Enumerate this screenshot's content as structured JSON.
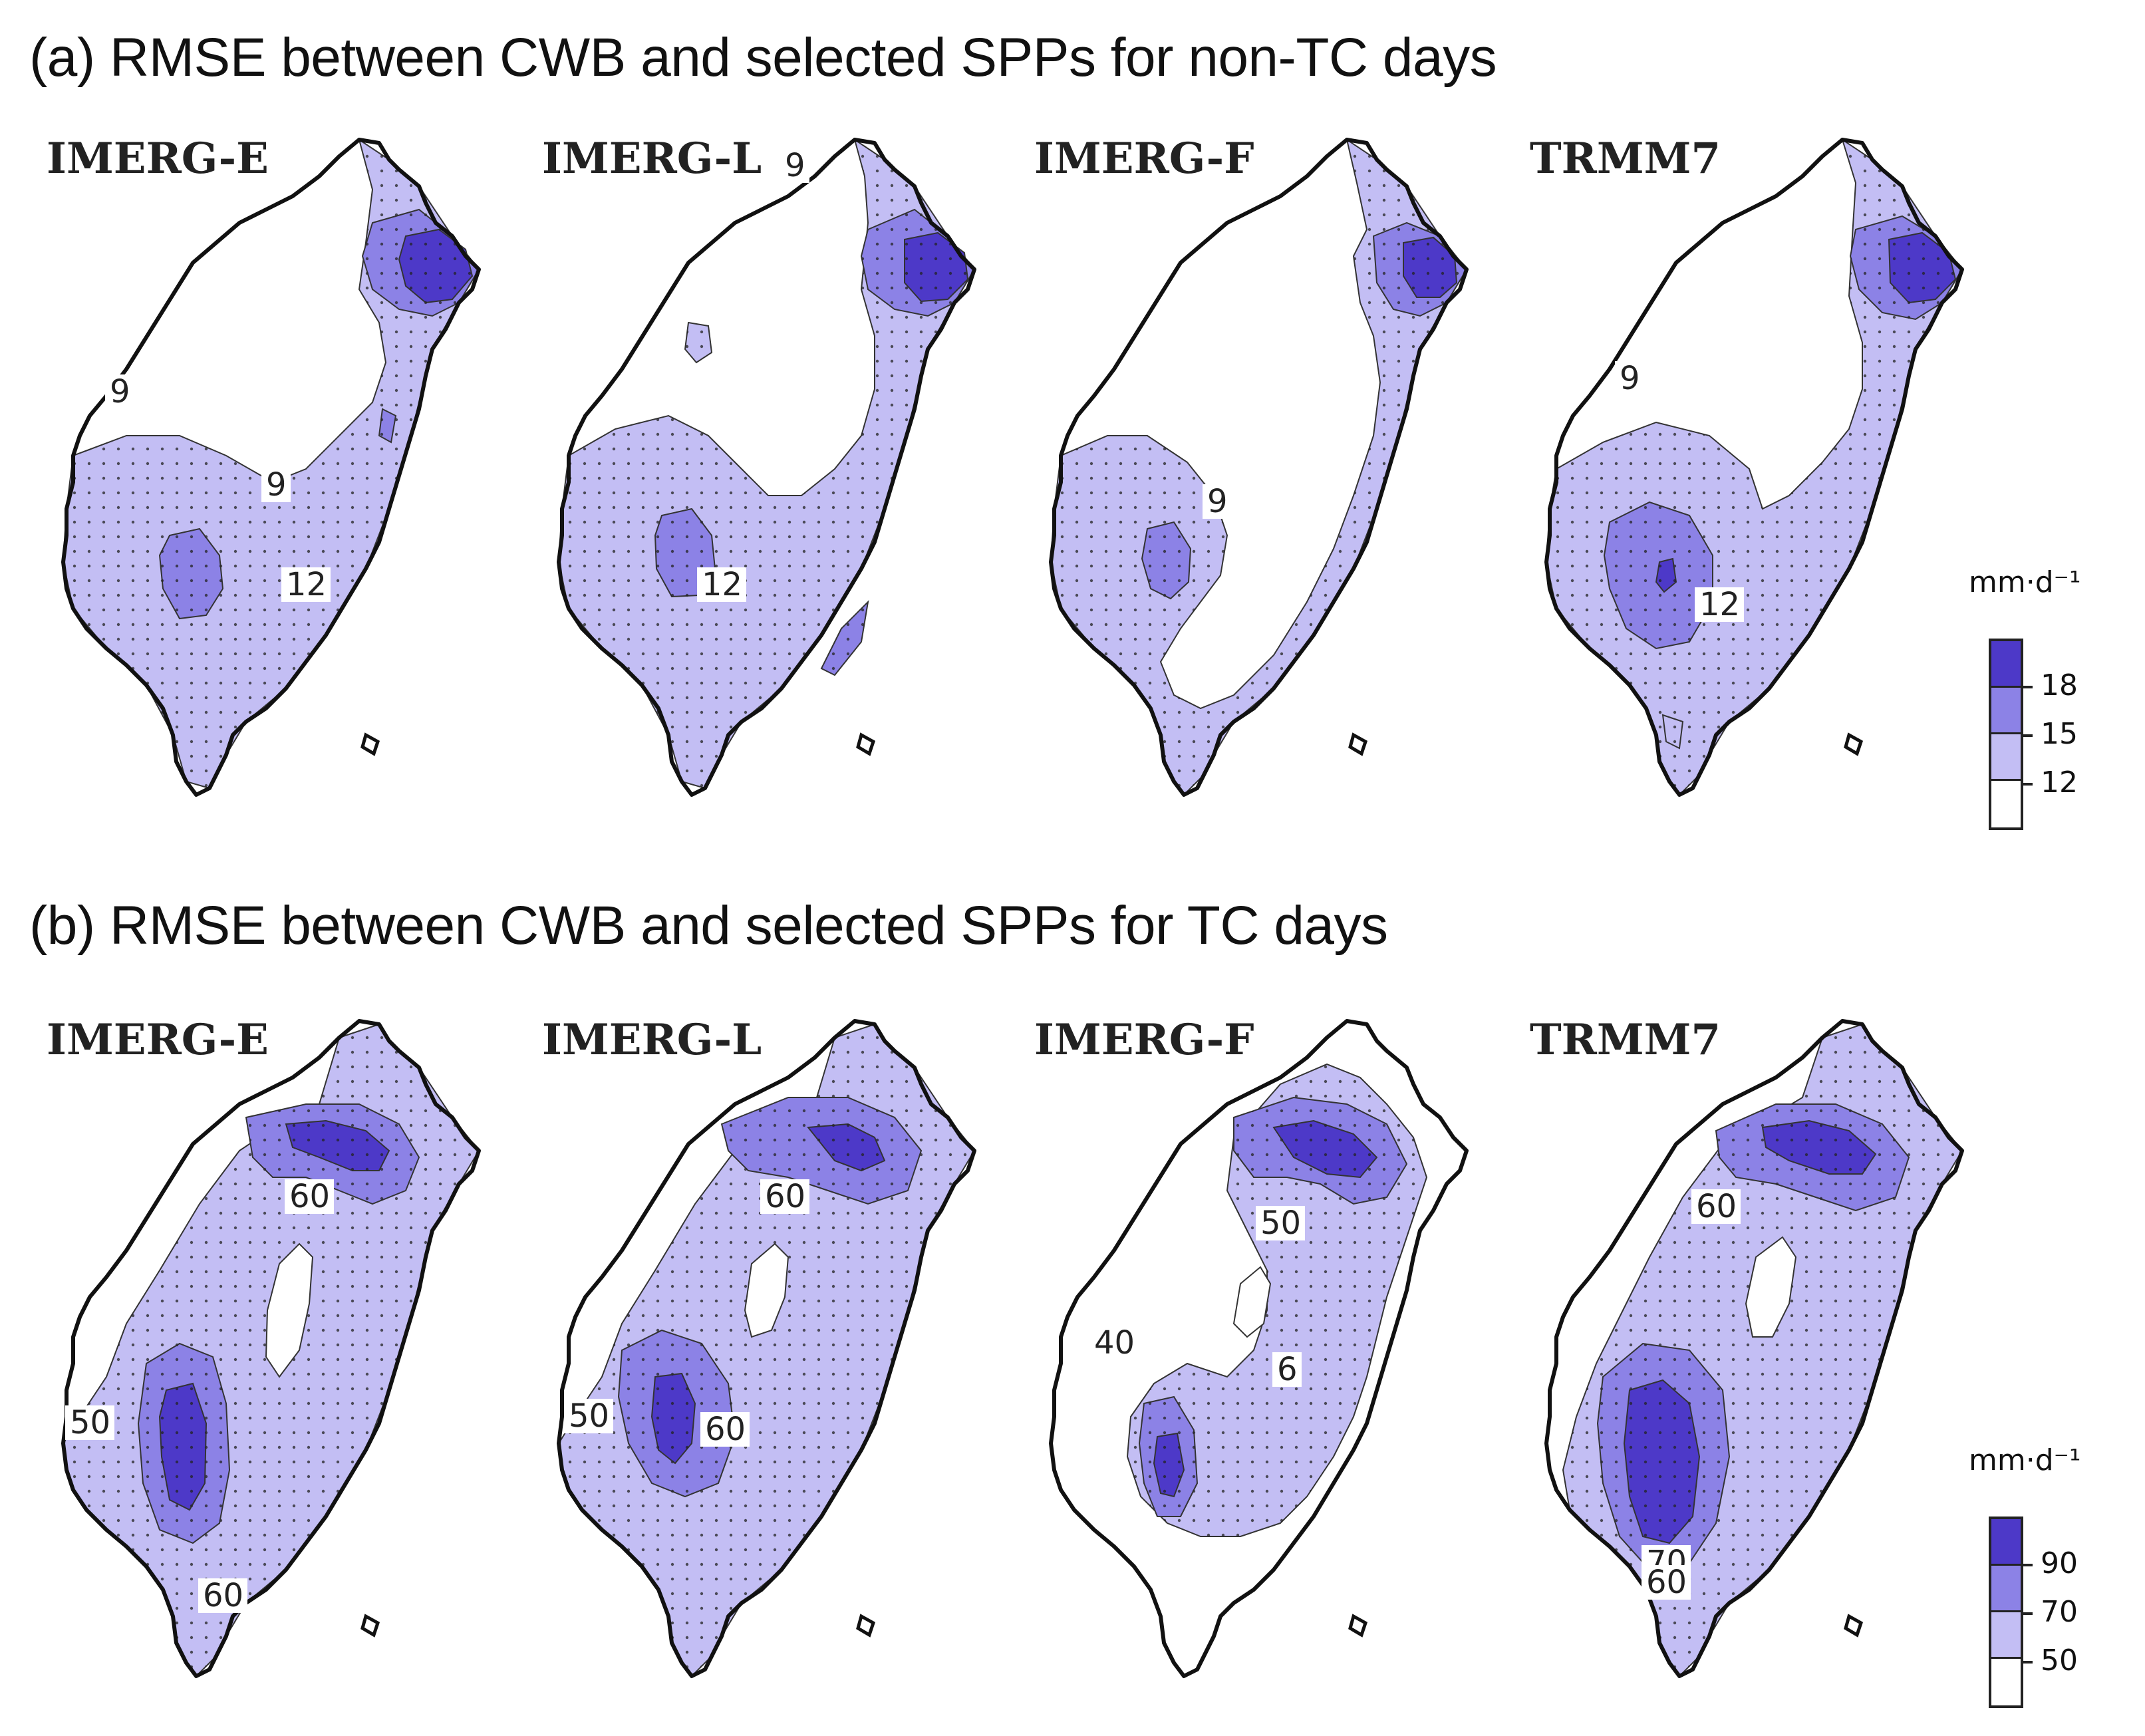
{
  "titles": {
    "a": "(a) RMSE between CWB and selected SPPs for non-TC days",
    "b": "(b) RMSE between CWB and selected SPPs for TC days"
  },
  "colors": {
    "level0": "#ffffff",
    "level1": "#c3bef4",
    "level2": "#8c82e6",
    "level3": "#4d39c8",
    "outline": "#111111"
  },
  "rows": [
    {
      "panel": "a",
      "maps": [
        {
          "label": "IMERG-E",
          "contour_labels": [
            "9",
            "9",
            "12"
          ]
        },
        {
          "label": "IMERG-L",
          "contour_labels": [
            "9",
            "12"
          ]
        },
        {
          "label": "IMERG-F",
          "contour_labels": [
            "9"
          ]
        },
        {
          "label": "TRMM7",
          "contour_labels": [
            "9",
            "12"
          ]
        }
      ],
      "legend": {
        "unit": "mm·d⁻¹",
        "ticks": [
          "18",
          "15",
          "12"
        ]
      }
    },
    {
      "panel": "b",
      "maps": [
        {
          "label": "IMERG-E",
          "contour_labels": [
            "60",
            "50",
            "60"
          ]
        },
        {
          "label": "IMERG-L",
          "contour_labels": [
            "60",
            "50",
            "60"
          ]
        },
        {
          "label": "IMERG-F",
          "contour_labels": [
            "50",
            "40",
            "6"
          ]
        },
        {
          "label": "TRMM7",
          "contour_labels": [
            "60",
            "70",
            "60"
          ]
        }
      ],
      "legend": {
        "unit": "mm·d⁻¹",
        "ticks": [
          "90",
          "70",
          "50"
        ]
      }
    }
  ]
}
